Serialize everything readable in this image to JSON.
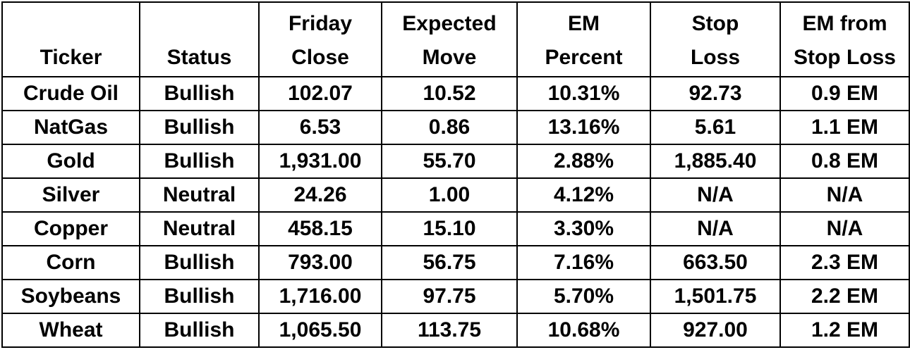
{
  "table": {
    "headers": [
      [
        "Ticker"
      ],
      [
        "Status"
      ],
      [
        "Friday",
        "Close"
      ],
      [
        "Expected",
        "Move"
      ],
      [
        "EM",
        "Percent"
      ],
      [
        "Stop",
        "Loss"
      ],
      [
        "EM from",
        "Stop Loss"
      ]
    ],
    "rows": [
      [
        "Crude Oil",
        "Bullish",
        "102.07",
        "10.52",
        "10.31%",
        "92.73",
        "0.9 EM"
      ],
      [
        "NatGas",
        "Bullish",
        "6.53",
        "0.86",
        "13.16%",
        "5.61",
        "1.1 EM"
      ],
      [
        "Gold",
        "Bullish",
        "1,931.00",
        "55.70",
        "2.88%",
        "1,885.40",
        "0.8 EM"
      ],
      [
        "Silver",
        "Neutral",
        "24.26",
        "1.00",
        "4.12%",
        "N/A",
        "N/A"
      ],
      [
        "Copper",
        "Neutral",
        "458.15",
        "15.10",
        "3.30%",
        "N/A",
        "N/A"
      ],
      [
        "Corn",
        "Bullish",
        "793.00",
        "56.75",
        "7.16%",
        "663.50",
        "2.3 EM"
      ],
      [
        "Soybeans",
        "Bullish",
        "1,716.00",
        "97.75",
        "5.70%",
        "1,501.75",
        "2.2 EM"
      ],
      [
        "Wheat",
        "Bullish",
        "1,065.50",
        "113.75",
        "10.68%",
        "927.00",
        "1.2 EM"
      ]
    ]
  }
}
